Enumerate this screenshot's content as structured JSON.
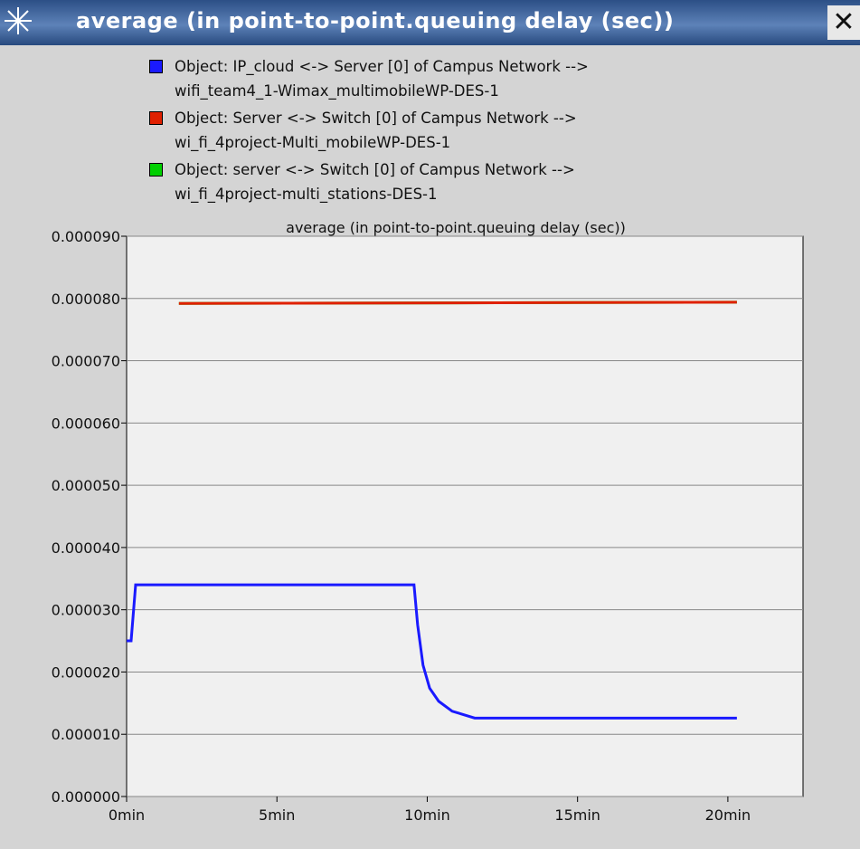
{
  "window_title": "average (in point-to-point.queuing delay (sec))",
  "chart_data": {
    "type": "line",
    "title": "average (in point-to-point.queuing delay (sec))",
    "series": [
      {
        "name": "Object: IP_cloud <-> Server [0] of Campus Network -->\nwifi_team4_1-Wimax_multimobileWP-DES-1",
        "color": "#1a1aff",
        "x": [
          0,
          0.15,
          0.3,
          9.56,
          9.68,
          9.86,
          10.08,
          10.38,
          10.83,
          11.58,
          20.3
        ],
        "values": [
          2.5e-05,
          2.5e-05,
          3.4e-05,
          3.4e-05,
          2.76e-05,
          2.11e-05,
          1.74e-05,
          1.53e-05,
          1.37e-05,
          1.26e-05,
          1.26e-05
        ]
      },
      {
        "name": "Object: Server <-> Switch [0] of Campus Network -->\nwi_fi_4project-Multi_mobileWP-DES-1",
        "color": "#e02000",
        "x": [
          1.74,
          20.3
        ],
        "values": [
          7.92e-05,
          7.94e-05
        ]
      },
      {
        "name": "Object: server <-> Switch [0] of Campus Network -->\nwi_fi_4project-multi_stations-DES-1",
        "color": "#00d000",
        "x": [
          1.74,
          20.3
        ],
        "values": [
          7.92e-05,
          7.94e-05
        ]
      }
    ],
    "xlim": [
      0,
      22.5
    ],
    "xticks": [
      {
        "value": 0,
        "label": "0min"
      },
      {
        "value": 5,
        "label": "5min"
      },
      {
        "value": 10,
        "label": "10min"
      },
      {
        "value": 15,
        "label": "15min"
      },
      {
        "value": 20,
        "label": "20min"
      }
    ],
    "ylim": [
      0,
      9e-05
    ],
    "yticks": [
      {
        "value": 0,
        "label": "0.000000"
      },
      {
        "value": 1e-05,
        "label": "0.000010"
      },
      {
        "value": 2e-05,
        "label": "0.000020"
      },
      {
        "value": 3e-05,
        "label": "0.000030"
      },
      {
        "value": 4e-05,
        "label": "0.000040"
      },
      {
        "value": 5e-05,
        "label": "0.000050"
      },
      {
        "value": 6e-05,
        "label": "0.000060"
      },
      {
        "value": 7e-05,
        "label": "0.000070"
      },
      {
        "value": 8e-05,
        "label": "0.000080"
      },
      {
        "value": 9e-05,
        "label": "0.000090"
      }
    ],
    "grid": true
  }
}
